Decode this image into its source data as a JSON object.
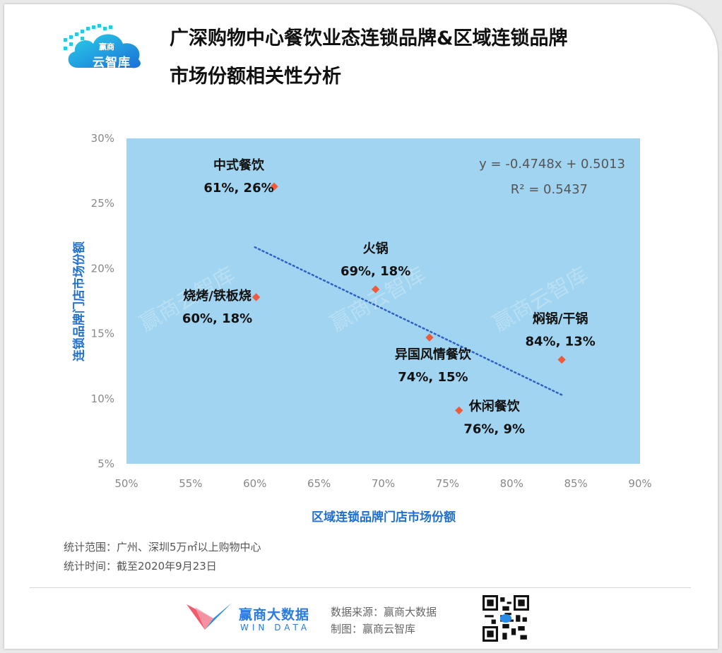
{
  "header": {
    "logo_text": "云智库",
    "logo_sub": "赢商",
    "title_line1": "广深购物中心餐饮业态连锁品牌&区域连锁品牌",
    "title_line2": "市场份额相关性分析"
  },
  "chart_data": {
    "type": "scatter",
    "xlabel": "区域连锁品牌门店市场份额",
    "ylabel": "连锁品牌门店市场份额",
    "xlim": [
      0.5,
      0.9
    ],
    "ylim": [
      0.05,
      0.3
    ],
    "x_ticks": [
      "50%",
      "55%",
      "60%",
      "65%",
      "70%",
      "75%",
      "80%",
      "85%",
      "90%"
    ],
    "y_ticks": [
      "5%",
      "10%",
      "15%",
      "20%",
      "25%",
      "30%"
    ],
    "points": [
      {
        "name": "中式餐饮",
        "label": "61%, 26%",
        "x": 0.615,
        "y": 0.263
      },
      {
        "name": "火锅",
        "label": "69%, 18%",
        "x": 0.694,
        "y": 0.184
      },
      {
        "name": "烧烤/铁板烧",
        "label": "60%, 18%",
        "x": 0.601,
        "y": 0.178
      },
      {
        "name": "异国风情餐饮",
        "label": "74%, 15%",
        "x": 0.736,
        "y": 0.147
      },
      {
        "name": "焖锅/干锅",
        "label": "84%, 13%",
        "x": 0.839,
        "y": 0.13
      },
      {
        "name": "休闲餐饮",
        "label": "76%, 9%",
        "x": 0.759,
        "y": 0.091
      }
    ],
    "trendline": {
      "type": "linear",
      "slope": -0.4748,
      "intercept": 0.5013,
      "x_range": [
        0.6,
        0.84
      ],
      "equation": "y = -0.4748x + 0.5013",
      "r2": "R² = 0.5437"
    },
    "colors": {
      "plot_bg": "#a0d4f0",
      "marker": "#ee5b3a",
      "trendline": "#2f5fc8",
      "axis_title": "#1e6fcf"
    },
    "grid": false,
    "watermark": "赢商云智库"
  },
  "notes": {
    "scope": "统计范围：广州、深圳5万㎡以上购物中心",
    "date": "统计时间：截至2020年9月23日"
  },
  "footer": {
    "brand_name": "赢商大数据",
    "brand_en": "WIN DATA",
    "source": "数据来源：赢商大数据",
    "maker": "制图：赢商云智库"
  }
}
